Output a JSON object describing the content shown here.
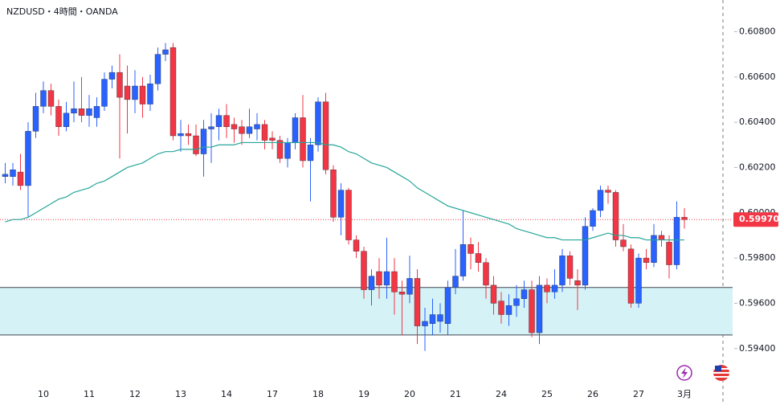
{
  "chart_data": {
    "type": "candlestick",
    "title": "NZDUSD・4時間・OANDA",
    "categories": [
      null,
      null,
      null,
      null,
      null,
      "10",
      null,
      null,
      null,
      null,
      null,
      "11",
      null,
      null,
      null,
      null,
      null,
      "12",
      null,
      null,
      null,
      null,
      null,
      "13",
      null,
      null,
      null,
      null,
      null,
      "14",
      null,
      null,
      null,
      null,
      null,
      "17",
      null,
      null,
      null,
      null,
      null,
      "18",
      null,
      null,
      null,
      null,
      null,
      "19",
      null,
      null,
      null,
      null,
      null,
      "20",
      null,
      null,
      null,
      null,
      null,
      "21",
      null,
      null,
      null,
      null,
      null,
      "24",
      null,
      null,
      null,
      null,
      null,
      "25",
      null,
      null,
      null,
      null,
      null,
      "26",
      null,
      null,
      null,
      null,
      null,
      "27",
      null,
      null,
      null,
      null,
      null,
      "3月"
    ],
    "open": [
      0.6016,
      0.6016,
      0.6018,
      0.6012,
      0.6036,
      0.6047,
      0.6054,
      0.6047,
      0.6038,
      0.6044,
      0.6046,
      0.6043,
      0.6042,
      0.6047,
      0.6059,
      0.6062,
      0.6056,
      0.605,
      0.6056,
      0.6048,
      0.6057,
      0.607,
      0.6073,
      0.6034,
      0.6035,
      0.6034,
      0.6026,
      0.6037,
      0.6038,
      0.6043,
      0.6039,
      0.6038,
      0.6035,
      0.6037,
      0.6039,
      0.6033,
      0.6032,
      0.6024,
      0.6031,
      0.6042,
      0.6023,
      0.603,
      0.6049,
      0.6019,
      0.5998,
      0.601,
      0.5988,
      0.5983,
      0.5966,
      0.5974,
      0.5968,
      0.5974,
      0.5965,
      0.5964,
      0.5971,
      0.595,
      0.5951,
      0.5952,
      0.5951,
      0.5967,
      0.5972,
      0.5986,
      0.5982,
      0.5978,
      0.5968,
      0.5961,
      0.5955,
      0.5959,
      0.5962,
      0.5966,
      0.5947,
      0.5968,
      0.5965,
      0.5968,
      0.5981,
      0.597,
      0.5968,
      0.5994,
      0.6001,
      0.601,
      0.6009,
      0.5988,
      0.5984,
      0.596,
      0.598,
      0.5978,
      0.599,
      0.5987,
      0.5977,
      0.5998
    ],
    "high": [
      0.6022,
      0.6022,
      0.6026,
      0.604,
      0.6053,
      0.6058,
      0.6057,
      0.605,
      0.6049,
      0.6058,
      0.606,
      0.6052,
      0.6051,
      0.6062,
      0.6065,
      0.607,
      0.6065,
      0.6063,
      0.606,
      0.6061,
      0.6073,
      0.6075,
      0.6075,
      0.6041,
      0.6039,
      0.6039,
      0.6041,
      0.6044,
      0.6046,
      0.6048,
      0.6042,
      0.6041,
      0.6046,
      0.6044,
      0.6041,
      0.6036,
      0.6034,
      0.6033,
      0.6044,
      0.6052,
      0.6033,
      0.6051,
      0.6053,
      0.6021,
      0.6013,
      0.6011,
      0.599,
      0.5985,
      0.5975,
      0.598,
      0.5989,
      0.598,
      0.597,
      0.5981,
      0.5975,
      0.5958,
      0.5962,
      0.596,
      0.597,
      0.5984,
      0.6001,
      0.5989,
      0.5987,
      0.598,
      0.5972,
      0.5965,
      0.5964,
      0.5968,
      0.597,
      0.597,
      0.5972,
      0.5971,
      0.5975,
      0.5984,
      0.5983,
      0.5975,
      0.5998,
      0.6002,
      0.6012,
      0.6012,
      0.601,
      0.5995,
      0.5986,
      0.5982,
      0.5984,
      0.5995,
      0.5992,
      0.599,
      0.6005,
      0.6002
    ],
    "low": [
      0.6013,
      0.6012,
      0.601,
      0.5998,
      0.6033,
      0.6044,
      0.6043,
      0.6034,
      0.6036,
      0.604,
      0.604,
      0.6038,
      0.6038,
      0.6045,
      0.6055,
      0.6024,
      0.6035,
      0.6044,
      0.6042,
      0.6045,
      0.6054,
      0.6067,
      0.6032,
      0.6027,
      0.603,
      0.6025,
      0.6016,
      0.6022,
      0.6032,
      0.6033,
      0.6031,
      0.603,
      0.6033,
      0.6032,
      0.6028,
      0.6028,
      0.6022,
      0.602,
      0.6028,
      0.602,
      0.6005,
      0.6027,
      0.6017,
      0.5996,
      0.599,
      0.5986,
      0.598,
      0.5962,
      0.5959,
      0.5962,
      0.5962,
      0.5955,
      0.5946,
      0.596,
      0.5942,
      0.5939,
      0.5946,
      0.5947,
      0.5946,
      0.5964,
      0.597,
      0.5975,
      0.5974,
      0.5962,
      0.5955,
      0.5951,
      0.595,
      0.5954,
      0.5958,
      0.5945,
      0.5942,
      0.596,
      0.5962,
      0.5965,
      0.5968,
      0.5957,
      0.5966,
      0.5992,
      0.5998,
      0.6004,
      0.5985,
      0.5983,
      0.5958,
      0.5958,
      0.5975,
      0.5976,
      0.5985,
      0.5971,
      0.5975,
      0.5993
    ],
    "close": [
      0.6017,
      0.6019,
      0.6012,
      0.6036,
      0.6047,
      0.6054,
      0.6047,
      0.6038,
      0.6044,
      0.6046,
      0.6043,
      0.6046,
      0.6047,
      0.6059,
      0.6062,
      0.6051,
      0.605,
      0.6056,
      0.6048,
      0.6057,
      0.607,
      0.6072,
      0.6034,
      0.6035,
      0.6034,
      0.6026,
      0.6037,
      0.6038,
      0.6043,
      0.6038,
      0.6037,
      0.6035,
      0.6038,
      0.6039,
      0.6032,
      0.6032,
      0.6024,
      0.6031,
      0.6042,
      0.6023,
      0.603,
      0.6049,
      0.6019,
      0.5998,
      0.601,
      0.5988,
      0.5983,
      0.5966,
      0.5972,
      0.5968,
      0.5974,
      0.5965,
      0.5964,
      0.5971,
      0.595,
      0.5952,
      0.5955,
      0.5955,
      0.5967,
      0.5972,
      0.5986,
      0.5982,
      0.5978,
      0.5968,
      0.596,
      0.5955,
      0.5959,
      0.5962,
      0.5966,
      0.5947,
      0.5968,
      0.5965,
      0.5968,
      0.5981,
      0.5971,
      0.5968,
      0.5994,
      0.6001,
      0.601,
      0.6009,
      0.5988,
      0.5985,
      0.596,
      0.598,
      0.5978,
      0.599,
      0.5988,
      0.5977,
      0.5998,
      0.5997
    ],
    "up_color": "#2962ff",
    "down_color": "#f23645",
    "ma": {
      "color": "#26a69a",
      "values": [
        0.5996,
        0.5997,
        0.5997,
        0.5998,
        0.6,
        0.6002,
        0.6004,
        0.6006,
        0.6007,
        0.6009,
        0.601,
        0.6011,
        0.6013,
        0.6014,
        0.6016,
        0.6018,
        0.602,
        0.6021,
        0.6022,
        0.6024,
        0.6026,
        0.6027,
        0.6027,
        0.6028,
        0.6028,
        0.6028,
        0.6029,
        0.6029,
        0.603,
        0.603,
        0.603,
        0.6031,
        0.6031,
        0.6031,
        0.6031,
        0.6031,
        0.6031,
        0.6031,
        0.6031,
        0.6031,
        0.6031,
        0.6031,
        0.603,
        0.603,
        0.6029,
        0.6027,
        0.6026,
        0.6024,
        0.6022,
        0.6021,
        0.602,
        0.6018,
        0.6016,
        0.6014,
        0.6011,
        0.6009,
        0.6007,
        0.6005,
        0.6003,
        0.6002,
        0.6001,
        0.6,
        0.5999,
        0.5998,
        0.5997,
        0.5996,
        0.5995,
        0.5993,
        0.5992,
        0.5991,
        0.599,
        0.5989,
        0.5989,
        0.5988,
        0.5988,
        0.5988,
        0.5988,
        0.5989,
        0.599,
        0.5991,
        0.599,
        0.599,
        0.5989,
        0.5989,
        0.5988,
        0.5988,
        0.5988,
        0.5988,
        0.5988,
        0.5988
      ]
    },
    "zone": {
      "color": "#d5f3f7",
      "range": [
        0.5946,
        0.5967
      ]
    },
    "last_price": {
      "value": 0.5997,
      "label": "0.59970",
      "color": "#f23645"
    },
    "ylim": [
      0.5925,
      0.6094
    ],
    "yticks": [
      {
        "value": 0.594,
        "label": "0.59400"
      },
      {
        "value": 0.596,
        "label": "0.59600"
      },
      {
        "value": 0.598,
        "label": "0.59800"
      },
      {
        "value": 0.6,
        "label": "0.60000"
      },
      {
        "value": 0.602,
        "label": "0.60200"
      },
      {
        "value": 0.604,
        "label": "0.60400"
      },
      {
        "value": 0.606,
        "label": "0.60600"
      },
      {
        "value": 0.608,
        "label": "0.60800"
      }
    ]
  }
}
